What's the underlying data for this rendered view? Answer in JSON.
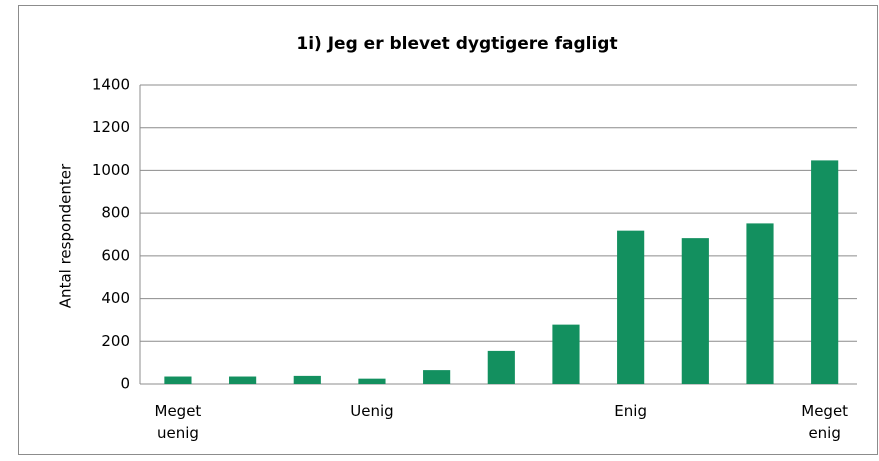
{
  "chart_data": {
    "type": "bar",
    "title": "1i) Jeg er blevet dygtigere fagligt",
    "y_label": "Antal respondenter",
    "categories": [
      "Meget uenig",
      null,
      null,
      "Uenig",
      null,
      null,
      null,
      "Enig",
      null,
      null,
      "Meget enig"
    ],
    "values": [
      35,
      35,
      38,
      25,
      65,
      155,
      278,
      718,
      683,
      752,
      1047
    ],
    "color": "#13905f",
    "ylim": [
      0,
      1400
    ],
    "yticks": [
      0,
      200,
      400,
      600,
      800,
      1000,
      1200,
      1400
    ],
    "grid": true
  }
}
